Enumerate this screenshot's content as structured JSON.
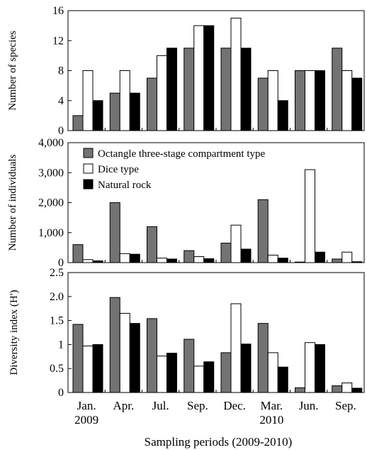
{
  "chart_data": {
    "type": "bar",
    "xlabel": "Sampling periods (2009-2010)",
    "categories": [
      {
        "line1": "Jan.",
        "line2": "2009"
      },
      {
        "line1": "Apr.",
        "line2": ""
      },
      {
        "line1": "Jul.",
        "line2": ""
      },
      {
        "line1": "Sep.",
        "line2": ""
      },
      {
        "line1": "Dec.",
        "line2": ""
      },
      {
        "line1": "Mar.",
        "line2": "2010"
      },
      {
        "line1": "Jun.",
        "line2": ""
      },
      {
        "line1": "Sep.",
        "line2": ""
      }
    ],
    "legend": {
      "placement": "top-left of middle panel",
      "entries": [
        {
          "label": "Octangle three-stage compartment type",
          "color": "#737373"
        },
        {
          "label": "Dice type",
          "color": "#ffffff"
        },
        {
          "label": "Natural rock",
          "color": "#000000"
        }
      ]
    },
    "panels": [
      {
        "ylabel": "Number of species",
        "ylim": [
          0,
          16
        ],
        "yticks": [
          0,
          4,
          8,
          12,
          16
        ],
        "ytick_labels": [
          "0",
          "4",
          "8",
          "12",
          "16"
        ],
        "series": [
          {
            "values": [
              2,
              5,
              7,
              11,
              11,
              7,
              8,
              11
            ]
          },
          {
            "values": [
              8,
              8,
              10,
              14,
              15,
              8,
              8,
              8
            ]
          },
          {
            "values": [
              4,
              5,
              11,
              14,
              11,
              4,
              8,
              7
            ]
          }
        ]
      },
      {
        "ylabel": "Number of individuals",
        "ylim": [
          0,
          4000
        ],
        "yticks": [
          0,
          1000,
          2000,
          3000,
          4000
        ],
        "ytick_labels": [
          "0",
          "1,000",
          "2,000",
          "3,000",
          "4,000"
        ],
        "series": [
          {
            "values": [
              600,
              2000,
              1200,
              400,
              650,
              2100,
              20,
              120
            ]
          },
          {
            "values": [
              100,
              300,
              150,
              200,
              1250,
              250,
              3100,
              350
            ]
          },
          {
            "values": [
              60,
              280,
              120,
              130,
              450,
              150,
              350,
              30
            ]
          }
        ]
      },
      {
        "ylabel": "Diversity index (H')",
        "ylim": [
          0,
          2.5
        ],
        "yticks": [
          0,
          0.5,
          1,
          1.5,
          2,
          2.5
        ],
        "ytick_labels": [
          "0",
          "0.5",
          "1",
          "1.5",
          "2.0",
          "2.5"
        ],
        "series": [
          {
            "values": [
              1.42,
              1.98,
              1.54,
              1.11,
              0.83,
              1.44,
              0.1,
              0.14
            ]
          },
          {
            "values": [
              0.97,
              1.65,
              0.76,
              0.55,
              1.85,
              0.83,
              1.04,
              0.2
            ]
          },
          {
            "values": [
              1.0,
              1.44,
              0.82,
              0.64,
              1.01,
              0.53,
              1.0,
              0.09
            ]
          }
        ]
      }
    ]
  }
}
